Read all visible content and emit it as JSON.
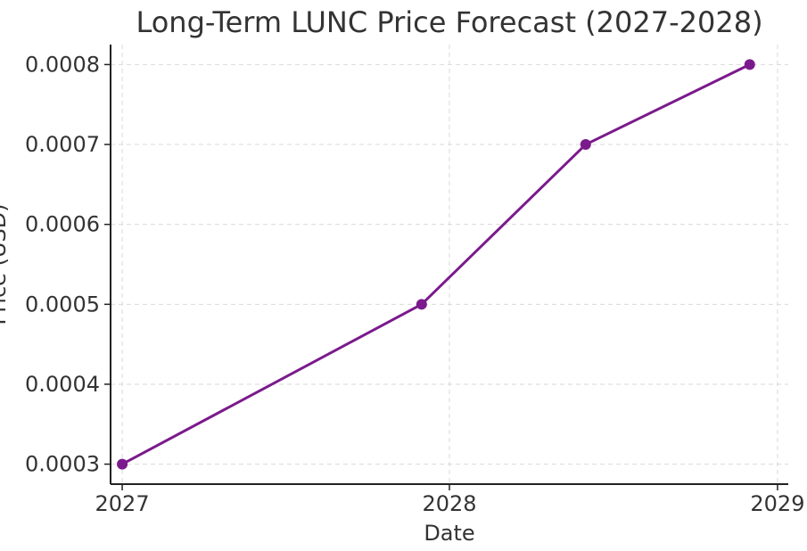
{
  "chart_data": {
    "type": "line",
    "title": "Long-Term LUNC Price Forecast (2027-2028)",
    "xlabel": "Date",
    "ylabel": "Price (USD)",
    "x_ticks": [
      "2027",
      "2028",
      "2029"
    ],
    "y_ticks": [
      "0.0003",
      "0.0004",
      "0.0005",
      "0.0006",
      "0.0007",
      "0.0008"
    ],
    "xlim": [
      "2026-12-19",
      "2029-01-13"
    ],
    "ylim": [
      0.000275,
      0.000825
    ],
    "grid": true,
    "series": [
      {
        "x": [
          "2027-01-01",
          "2027-12-01",
          "2028-06-01",
          "2028-12-01"
        ],
        "values": [
          0.0003,
          0.0005,
          0.0007,
          0.0008
        ],
        "color": "#7b1a8c",
        "marker": "circle"
      }
    ]
  }
}
